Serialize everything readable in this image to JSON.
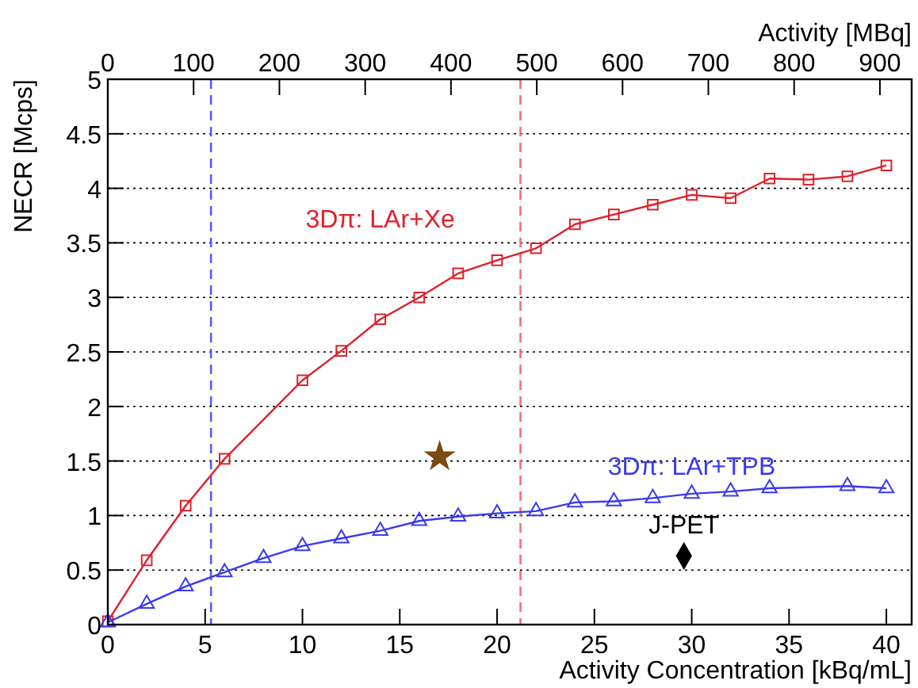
{
  "chart_data": {
    "type": "line",
    "xlabel": "Activity Concentration [kBq/mL]",
    "x2label": "Activity [MBq]",
    "ylabel": "NECR [Mcps]",
    "xlim": [
      0,
      41.3
    ],
    "xticks": [
      0,
      5,
      10,
      15,
      20,
      25,
      30,
      35,
      40
    ],
    "x2lim": [
      0,
      937
    ],
    "x2ticks": [
      0,
      100,
      200,
      300,
      400,
      500,
      600,
      700,
      800,
      900
    ],
    "ylim": [
      0,
      5
    ],
    "yticks": [
      0,
      0.5,
      1,
      1.5,
      2,
      2.5,
      3,
      3.5,
      4,
      4.5,
      5
    ],
    "grid": "y",
    "series": [
      {
        "name": "3Dπ: LAr+Xe",
        "color": "#e0202a",
        "marker": "square",
        "x": [
          0,
          2,
          4,
          6,
          10,
          12,
          14,
          16,
          18,
          20,
          22,
          24,
          26,
          28,
          30,
          32,
          34,
          36,
          38,
          40
        ],
        "values": [
          0.03,
          0.59,
          1.09,
          1.52,
          2.24,
          2.51,
          2.8,
          3.0,
          3.22,
          3.34,
          3.45,
          3.67,
          3.76,
          3.85,
          3.94,
          3.91,
          4.09,
          4.08,
          4.11,
          4.21
        ]
      },
      {
        "name": "3Dπ: LAr+TPB",
        "color": "#3a3af0",
        "marker": "triangle",
        "x": [
          0,
          2,
          4,
          6,
          8,
          10,
          12,
          14,
          16,
          18,
          20,
          22,
          24,
          26,
          28,
          30,
          32,
          34,
          38,
          40
        ],
        "values": [
          0.02,
          0.19,
          0.35,
          0.48,
          0.61,
          0.72,
          0.79,
          0.86,
          0.95,
          0.99,
          1.02,
          1.04,
          1.12,
          1.13,
          1.16,
          1.2,
          1.22,
          1.25,
          1.27,
          1.25
        ]
      },
      {
        "type": "scatter",
        "color": "#7a4a10",
        "marker": "star",
        "x": [
          17.05
        ],
        "values": [
          1.54
        ]
      },
      {
        "type": "scatter",
        "name": "J-PET",
        "color": "#000000",
        "marker": "diamond",
        "x": [
          29.6
        ],
        "values": [
          0.63
        ]
      }
    ],
    "ref_lines": [
      {
        "axis": "x",
        "value": 5.3,
        "color": "#5a5af0",
        "line_style": "dashed"
      },
      {
        "axis": "x",
        "value": 21.2,
        "color": "#f07070",
        "line_style": "dashed"
      }
    ]
  }
}
